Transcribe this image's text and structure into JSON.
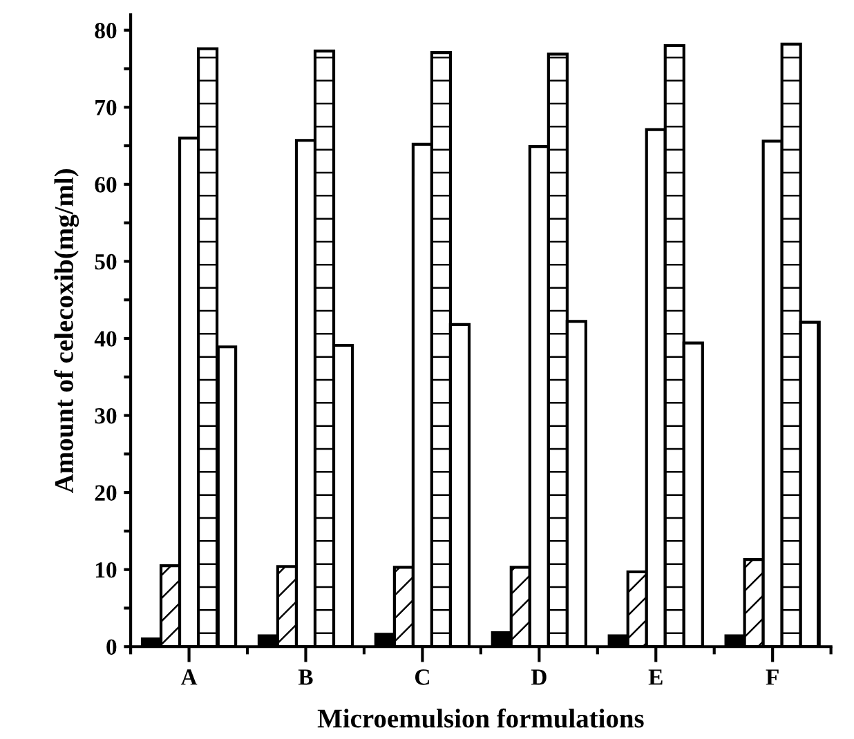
{
  "chart_data": {
    "type": "bar",
    "xlabel": "Microemulsion formulations",
    "ylabel": "Amount of celecoxib(mg/ml)",
    "categories": [
      "A",
      "B",
      "C",
      "D",
      "E",
      "F"
    ],
    "series": [
      {
        "color": "#000000",
        "values": [
          1.0,
          1.4,
          1.6,
          1.8,
          1.4,
          1.4
        ]
      },
      {
        "color": "#ffffff",
        "values": [
          10.5,
          10.4,
          10.3,
          10.3,
          9.7,
          11.3
        ]
      },
      {
        "color": "#ffffff",
        "values": [
          66.0,
          65.7,
          65.2,
          64.9,
          67.1,
          65.6
        ]
      },
      {
        "color": "#ffffff",
        "values": [
          77.6,
          77.3,
          77.1,
          76.9,
          78.0,
          78.2
        ]
      },
      {
        "color": "#ffffff",
        "values": [
          38.9,
          39.1,
          41.8,
          42.2,
          39.4,
          42.1
        ]
      }
    ],
    "ylim": [
      0,
      82
    ],
    "yticks": [
      0,
      {
        "value": 5,
        "label": null
      },
      10,
      {
        "value": 15,
        "label": null
      },
      20,
      {
        "value": 25,
        "label": null
      },
      30,
      {
        "value": 35,
        "label": null
      },
      40,
      {
        "value": 45,
        "label": null
      },
      50,
      {
        "value": 55,
        "label": null
      },
      60,
      {
        "value": 65,
        "label": null
      },
      70,
      {
        "value": 75,
        "label": null
      },
      80
    ],
    "grid": false,
    "legend": false
  }
}
